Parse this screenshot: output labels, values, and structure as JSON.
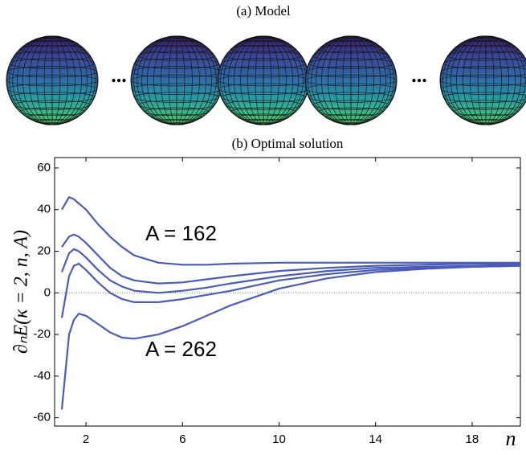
{
  "chart_data": {
    "type": "line",
    "panel_a_title": "(a) Model",
    "ellipsis": "...",
    "title": "(b) Optimal solution",
    "y_label": "∂ₙE(κ = 2, n, A)",
    "x_label": "n",
    "annotations": [
      "A = 162",
      "A = 262"
    ],
    "x": [
      1,
      1.3,
      1.5,
      1.7,
      2,
      2.5,
      3,
      3.5,
      4,
      5,
      6,
      7,
      8,
      10,
      12,
      14,
      16,
      18,
      20
    ],
    "series": [
      {
        "color": "#4a5cb8",
        "values": [
          40,
          46,
          45,
          43,
          40,
          33,
          27,
          22,
          18,
          14.5,
          13.5,
          13.5,
          14,
          14.5,
          14.5,
          14.5,
          14.5,
          14.5,
          14.5
        ]
      },
      {
        "color": "#4a5cb8",
        "values": [
          22,
          27,
          28,
          27,
          24,
          18,
          12,
          8,
          6,
          4.5,
          5,
          6.5,
          8,
          10.5,
          12,
          13,
          13.5,
          14,
          14
        ]
      },
      {
        "color": "#4a5cb8",
        "values": [
          10,
          19,
          21,
          20,
          17,
          11,
          6,
          3,
          1,
          0,
          1,
          2.5,
          4.5,
          8,
          10.5,
          12,
          12.5,
          13,
          13.5
        ]
      },
      {
        "color": "#4a5cb8",
        "values": [
          -12,
          8,
          13,
          14,
          11,
          5,
          0,
          -3,
          -4.5,
          -4.5,
          -3,
          -1,
          1,
          6,
          9,
          11,
          12,
          12.5,
          13
        ]
      },
      {
        "color": "#4a5cb8",
        "values": [
          -56,
          -20,
          -13,
          -10,
          -11,
          -15,
          -19,
          -21.5,
          -22,
          -20,
          -16,
          -11,
          -6,
          2,
          7,
          10,
          11.5,
          12.5,
          13
        ]
      }
    ],
    "xlim": [
      0.7,
      20
    ],
    "ylim": [
      -64,
      65
    ],
    "xticks": [
      2,
      6,
      10,
      14,
      18
    ],
    "yticks": [
      -60,
      -40,
      -20,
      0,
      20,
      40,
      60
    ],
    "grid": false
  }
}
